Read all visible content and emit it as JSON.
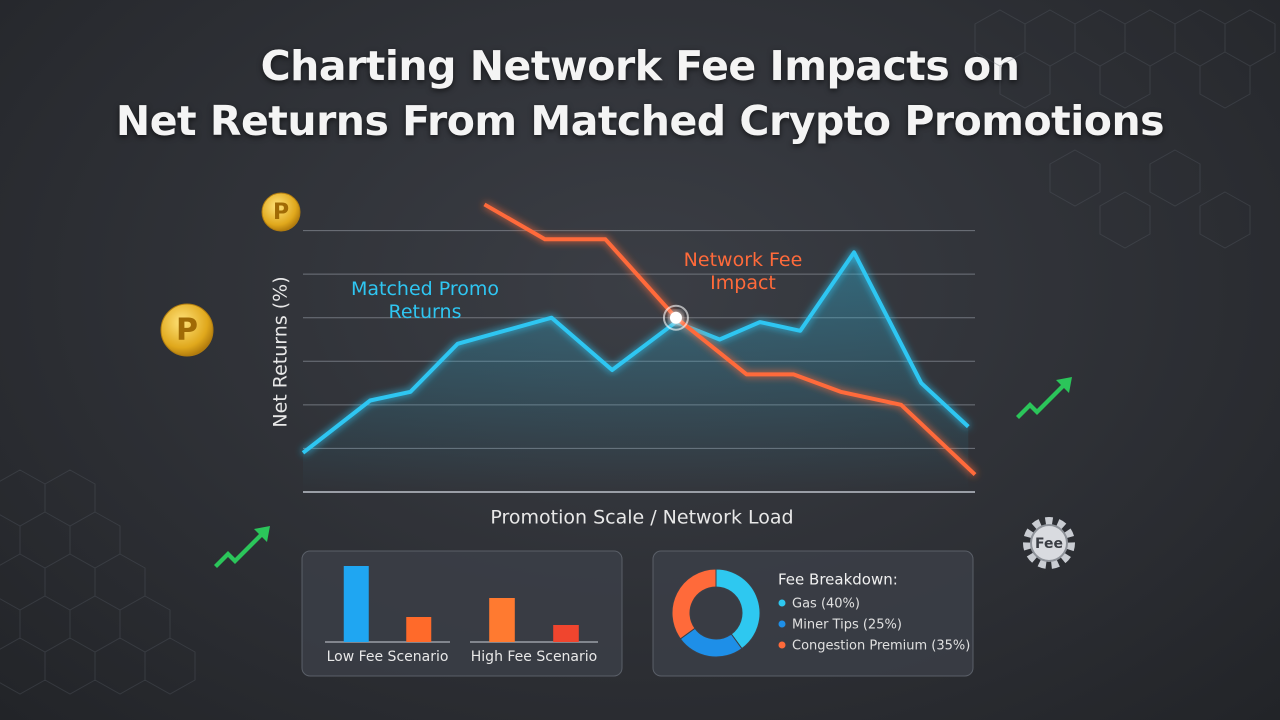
{
  "header": {
    "title_lines": [
      "Charting Network Fee Impacts on",
      "Net Returns From Matched Crypto Promotions"
    ]
  },
  "decorations": {
    "coin_symbol": "P",
    "gear_label": "Fee"
  },
  "chart_data": [
    {
      "type": "line",
      "y_label": "Net Returns (%)",
      "x_label": "Promotion Scale / Network Load",
      "xlim": [
        0,
        100
      ],
      "ylim": [
        0,
        70
      ],
      "gridlines": [
        10,
        20,
        30,
        40,
        50,
        60
      ],
      "series": [
        {
          "name": "Matched Promo Returns",
          "color": "#2fc6f2",
          "x": [
            0,
            10,
            16,
            23,
            37,
            46,
            55.5,
            62,
            68,
            74,
            82,
            92,
            99
          ],
          "values": [
            9,
            21,
            23,
            34,
            40,
            28,
            39,
            35,
            39,
            37,
            55,
            25,
            15
          ]
        },
        {
          "name": "Network Fee Impact",
          "color": "#ff6a3a",
          "x": [
            27,
            36,
            45,
            55.5,
            66,
            73,
            80,
            89,
            100
          ],
          "values": [
            66,
            58,
            58,
            40,
            27,
            27,
            23,
            20,
            4
          ]
        }
      ]
    },
    {
      "type": "bar",
      "categories": [
        "Low Fee Scenario",
        "High Fee Scenario"
      ],
      "values": [
        [
          76,
          25
        ],
        [
          44,
          17
        ]
      ],
      "colors": [
        [
          "#1fa6f2",
          "#ff6a2a"
        ],
        [
          "#ff7a30",
          "#f0452e"
        ]
      ],
      "ylim": [
        0,
        80
      ]
    },
    {
      "type": "donut",
      "title": "Fee Breakdown:",
      "categories": [
        "Gas (40%)",
        "Miner Tips (25%)",
        "Congestion Premium (35%)"
      ],
      "values": [
        40,
        25,
        35
      ],
      "colors": [
        "#2ec8f0",
        "#1e8fe8",
        "#ff6a3a"
      ]
    }
  ]
}
